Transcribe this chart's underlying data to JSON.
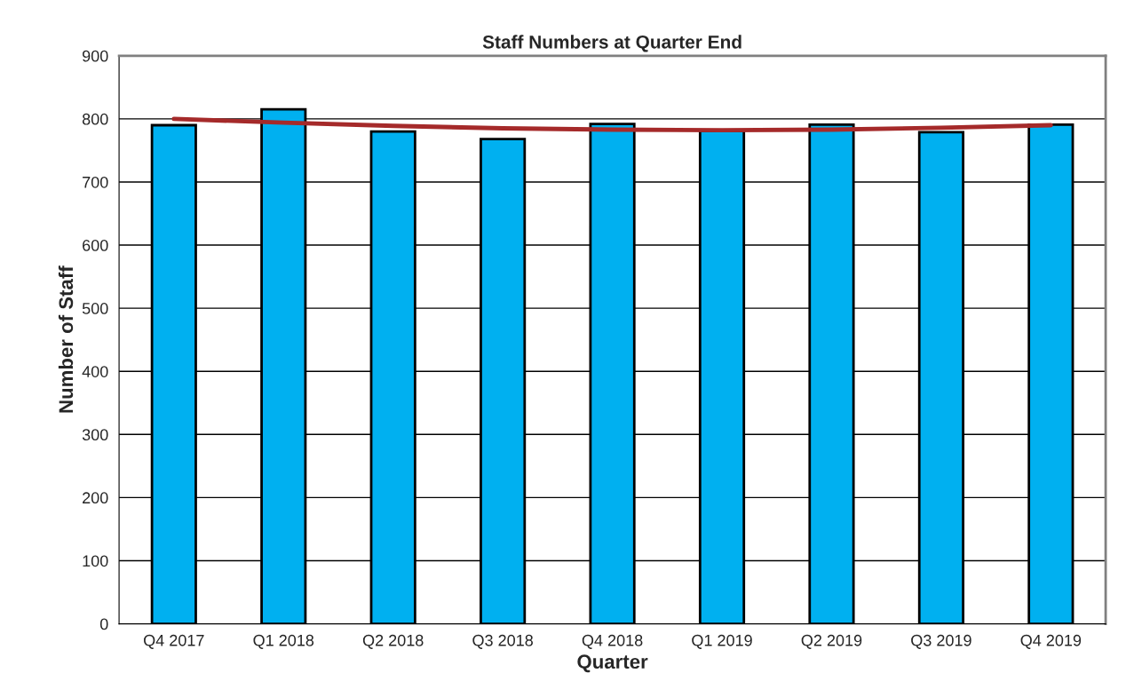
{
  "chart_data": {
    "type": "bar",
    "title": "Staff Numbers at Quarter End",
    "xlabel": "Quarter",
    "ylabel": "Number of Staff",
    "categories": [
      "Q4 2017",
      "Q1 2018",
      "Q2 2018",
      "Q3 2018",
      "Q4 2018",
      "Q1 2019",
      "Q2 2019",
      "Q3 2019",
      "Q4 2019"
    ],
    "series": [
      {
        "color": "#00b0f0",
        "values": [
          790,
          815,
          780,
          768,
          792,
          781,
          791,
          779,
          791
        ]
      },
      {
        "type": "line",
        "color": "#a52a2a",
        "values": [
          800,
          794,
          789,
          785,
          783,
          782,
          783,
          786,
          790
        ]
      }
    ],
    "ylim": [
      0,
      900
    ],
    "yticks": [
      0,
      100,
      200,
      300,
      400,
      500,
      600,
      700,
      800,
      900
    ],
    "grid": "y",
    "legend": false
  }
}
